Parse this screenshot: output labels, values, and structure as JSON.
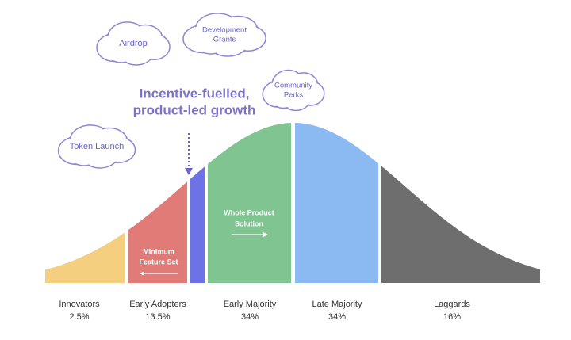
{
  "headline": [
    "Incentive-fuelled,",
    "product-led growth"
  ],
  "clouds": [
    [
      "Airdrop"
    ],
    [
      "Development",
      "Grants"
    ],
    [
      "Community",
      "Perks"
    ],
    [
      "Token Launch"
    ]
  ],
  "annotations": {
    "minimum_feature_set": [
      "Minimum",
      "Feature Set"
    ],
    "whole_product_solution": [
      "Whole Product",
      "Solution"
    ]
  },
  "segments": [
    {
      "name": "Innovators",
      "share": "2.5%"
    },
    {
      "name": "Early Adopters",
      "share": "13.5%"
    },
    {
      "name": "Early Majority",
      "share": "34%"
    },
    {
      "name": "Late Majority",
      "share": "34%"
    },
    {
      "name": "Laggards",
      "share": "16%"
    }
  ]
}
